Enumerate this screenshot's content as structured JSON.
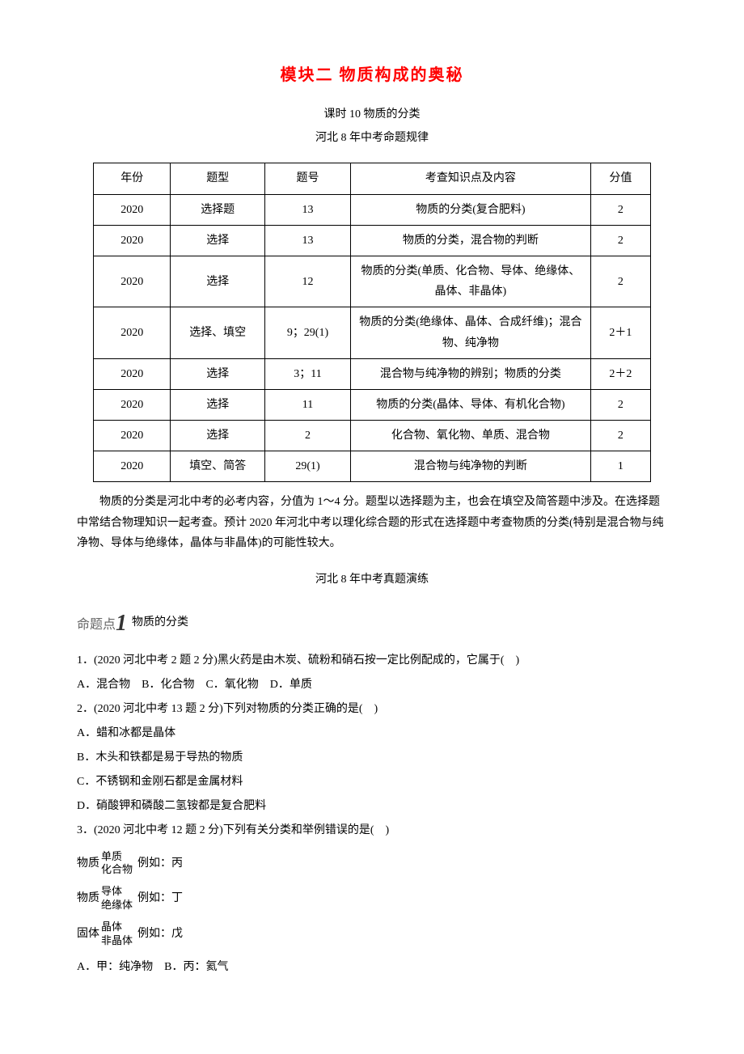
{
  "title": "模块二 物质构成的奥秘",
  "subtitle": "课时 10 物质的分类",
  "subtitle2": "河北 8 年中考命题规律",
  "table": {
    "headers": [
      "年份",
      "题型",
      "题号",
      "考查知识点及内容",
      "分值"
    ],
    "rows": [
      [
        "2020",
        "选择题",
        "13",
        "物质的分类(复合肥料)",
        "2"
      ],
      [
        "2020",
        "选择",
        "13",
        "物质的分类，混合物的判断",
        "2"
      ],
      [
        "2020",
        "选择",
        "12",
        "物质的分类(单质、化合物、导体、绝缘体、晶体、非晶体)",
        "2"
      ],
      [
        "2020",
        "选择、填空",
        "9；29(1)",
        "物质的分类(绝缘体、晶体、合成纤维)；混合物、纯净物",
        "2＋1"
      ],
      [
        "2020",
        "选择",
        "3；11",
        "混合物与纯净物的辨别；物质的分类",
        "2＋2"
      ],
      [
        "2020",
        "选择",
        "11",
        "物质的分类(晶体、导体、有机化合物)",
        "2"
      ],
      [
        "2020",
        "选择",
        "2",
        "化合物、氧化物、单质、混合物",
        "2"
      ],
      [
        "2020",
        "填空、简答",
        "29(1)",
        "混合物与纯净物的判断",
        "1"
      ]
    ]
  },
  "description": "物质的分类是河北中考的必考内容，分值为 1～4 分。题型以选择题为主，也会在填空及简答题中涉及。在选择题中常结合物理知识一起考查。预计 2020 年河北中考以理化综合题的形式在选择题中考查物质的分类(特别是混合物与纯净物、导体与绝缘体，晶体与非晶体)的可能性较大。",
  "section_heading": "河北 8 年中考真题演练",
  "topic": {
    "label_prefix": "命题点",
    "number": "1",
    "text": "物质的分类"
  },
  "questions": [
    {
      "num": "1．",
      "source": "(2020 河北中考 2 题 2 分)",
      "stem": "黑火药是由木炭、硫粉和硝石按一定比例配成的，它属于(　)",
      "options_inline": "A．混合物　B．化合物　C．氧化物　D．单质"
    },
    {
      "num": "2．",
      "source": "(2020 河北中考 13 题 2 分)",
      "stem": "下列对物质的分类正确的是(　)",
      "options_block": [
        "A．蜡和冰都是晶体",
        "B．木头和铁都是易于导热的物质",
        "C．不锈钢和金刚石都是金属材料",
        "D．硝酸钾和磷酸二氢铵都是复合肥料"
      ]
    },
    {
      "num": "3．",
      "source": "(2020 河北中考 12 题 2 分)",
      "stem": "下列有关分类和举例错误的是(　)",
      "branches": [
        {
          "left": "物质",
          "top": "单质",
          "bottom": "化合物",
          "right": "例如：丙"
        },
        {
          "left": "物质",
          "top": "导体",
          "bottom": "绝缘体",
          "right": "例如：丁"
        },
        {
          "left": "固体",
          "top": "晶体",
          "bottom": "非晶体",
          "right": "例如：戊"
        }
      ],
      "options_inline": "A．甲：纯净物　B．丙：氦气"
    }
  ],
  "colors": {
    "title_color": "#ff0000",
    "text_color": "#000000",
    "border_color": "#000000",
    "background": "#ffffff"
  }
}
